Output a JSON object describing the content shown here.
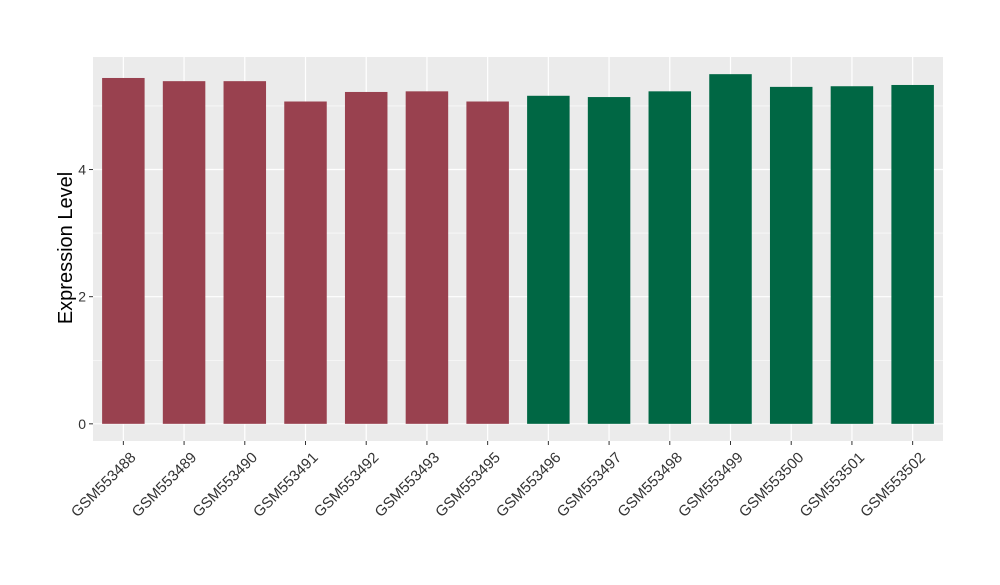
{
  "chart_data": {
    "type": "bar",
    "title": "",
    "xlabel": "",
    "ylabel": "Expression Level",
    "categories": [
      "GSM553488",
      "GSM553489",
      "GSM553490",
      "GSM553491",
      "GSM553492",
      "GSM553493",
      "GSM553495",
      "GSM553496",
      "GSM553497",
      "GSM553498",
      "GSM553499",
      "GSM553500",
      "GSM553501",
      "GSM553502"
    ],
    "values": [
      5.44,
      5.39,
      5.39,
      5.07,
      5.22,
      5.23,
      5.07,
      5.16,
      5.14,
      5.23,
      5.5,
      5.3,
      5.31,
      5.33
    ],
    "groups": [
      "a",
      "a",
      "a",
      "a",
      "a",
      "a",
      "a",
      "b",
      "b",
      "b",
      "b",
      "b",
      "b",
      "b"
    ],
    "group_colors": {
      "a": "#99414F",
      "b": "#006744"
    },
    "yticks": [
      0,
      2,
      4
    ],
    "ylim": [
      -0.27,
      5.77
    ],
    "grid": true,
    "legend": false,
    "panel_background": "#EBEBEB",
    "grid_color": "#FFFFFF"
  }
}
